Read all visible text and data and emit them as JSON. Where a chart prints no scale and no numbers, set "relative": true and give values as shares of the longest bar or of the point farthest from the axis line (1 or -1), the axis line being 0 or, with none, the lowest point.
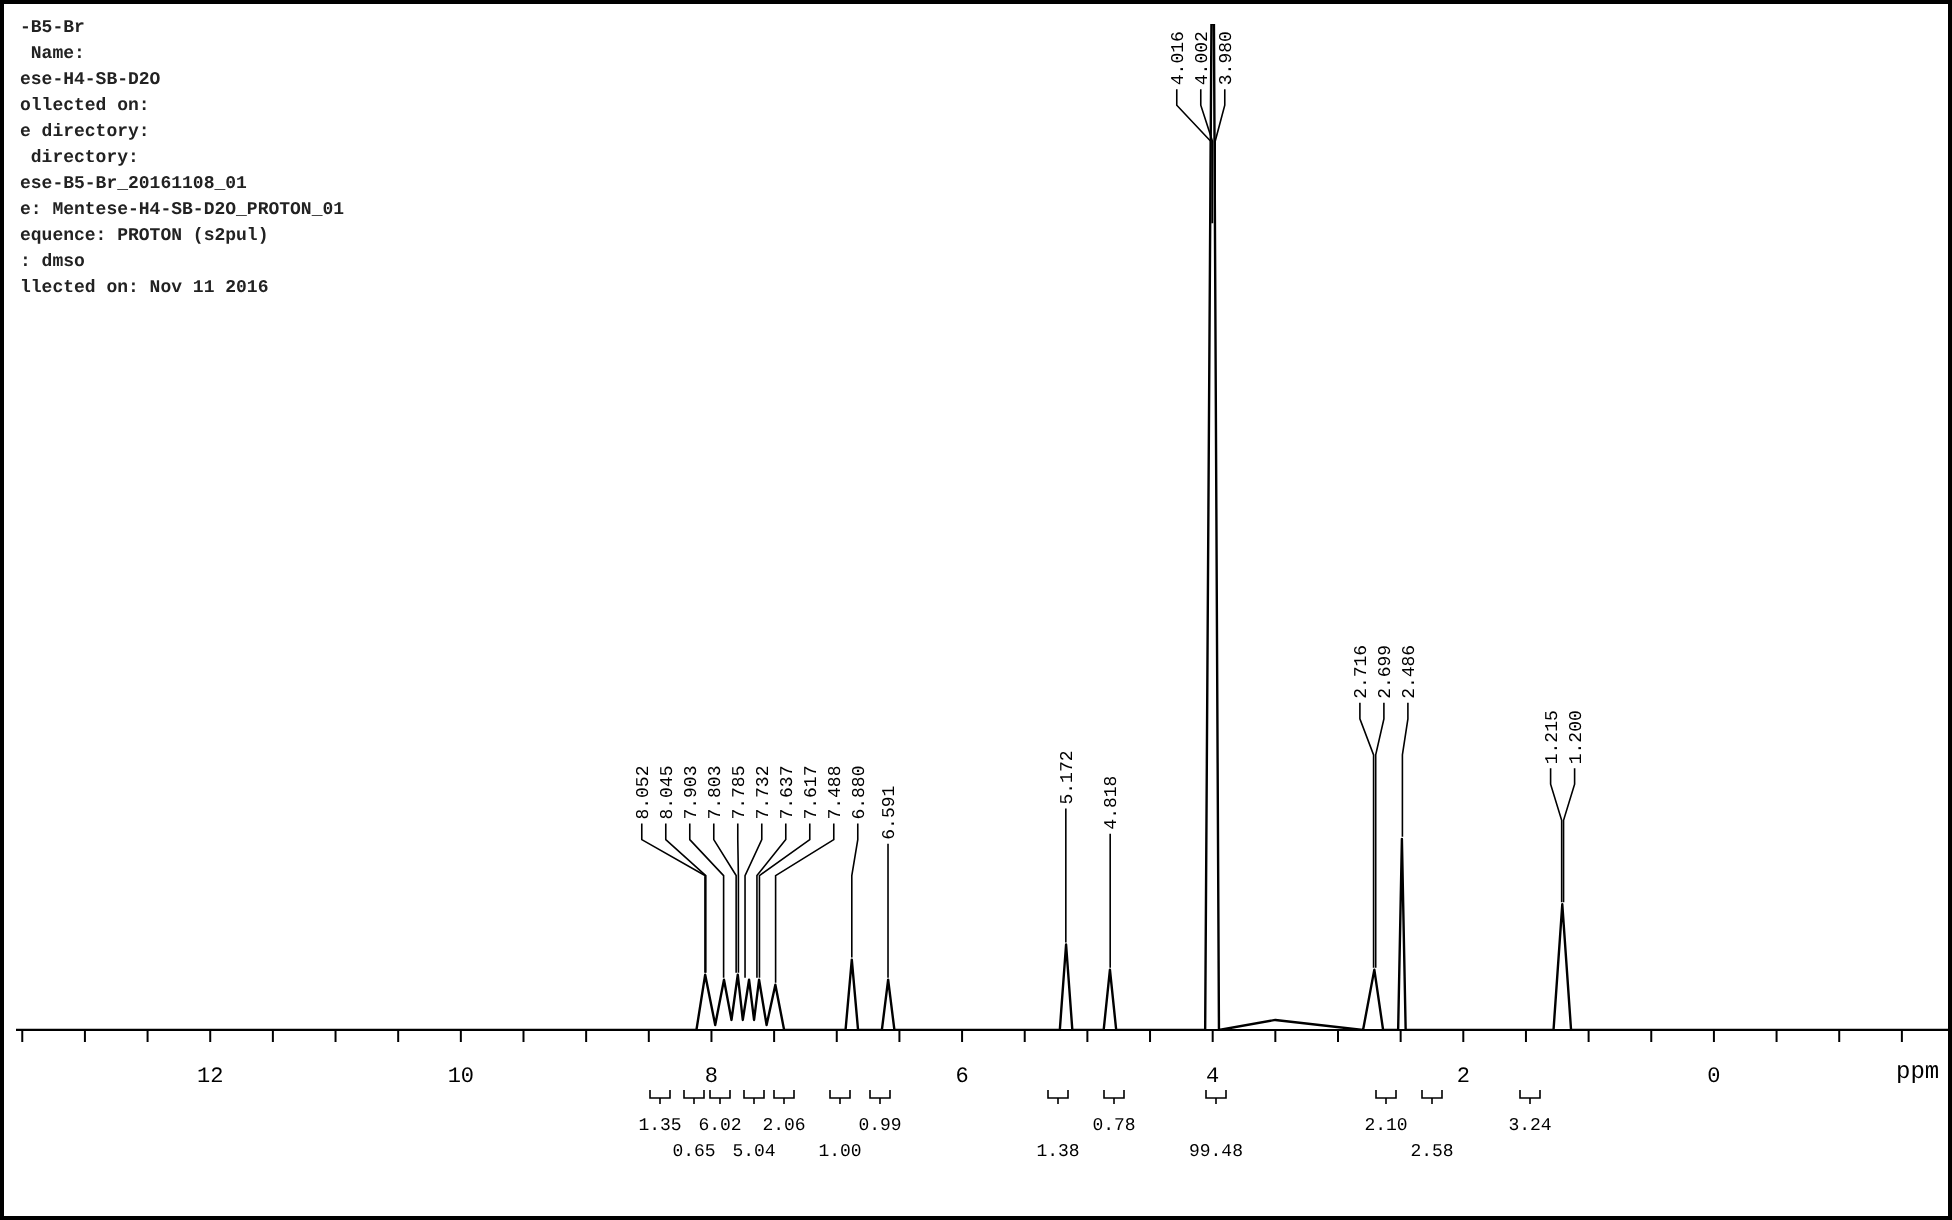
{
  "chart_data": {
    "type": "line",
    "relative": true,
    "xlabel": "ppm",
    "xlim": [
      13.55,
      -1.9
    ],
    "xticks": [
      {
        "value": 13.5,
        "label": null
      },
      {
        "value": 13,
        "label": null
      },
      {
        "value": 12.5,
        "label": null
      },
      12,
      {
        "value": 11.5,
        "label": null
      },
      {
        "value": 11,
        "label": null
      },
      {
        "value": 10.5,
        "label": null
      },
      10,
      {
        "value": 9.5,
        "label": null
      },
      {
        "value": 9,
        "label": null
      },
      {
        "value": 8.5,
        "label": null
      },
      8,
      {
        "value": 7.5,
        "label": null
      },
      {
        "value": 7,
        "label": null
      },
      {
        "value": 6.5,
        "label": null
      },
      6,
      {
        "value": 5.5,
        "label": null
      },
      {
        "value": 5,
        "label": null
      },
      {
        "value": 4.5,
        "label": null
      },
      4,
      {
        "value": 3.5,
        "label": null
      },
      {
        "value": 3,
        "label": null
      },
      {
        "value": 2.5,
        "label": null
      },
      2,
      {
        "value": 1.5,
        "label": null
      },
      {
        "value": 1,
        "label": null
      },
      {
        "value": 0.5,
        "label": null
      },
      0,
      {
        "value": -0.5,
        "label": null
      },
      {
        "value": -1,
        "label": null
      },
      {
        "value": -1.5,
        "label": null
      }
    ],
    "marker": "none",
    "line_style": "solid",
    "series": [
      {
        "color": "#000000",
        "x": [
          13.55,
          8.12,
          8.05,
          7.97,
          7.9,
          7.84,
          7.79,
          7.75,
          7.7,
          7.66,
          7.62,
          7.56,
          7.49,
          7.42,
          6.93,
          6.88,
          6.83,
          6.64,
          6.59,
          6.54,
          5.22,
          5.17,
          5.12,
          4.87,
          4.82,
          4.77,
          4.06,
          4.01,
          3.99,
          3.95,
          3.5,
          2.8,
          2.71,
          2.64,
          2.52,
          2.49,
          2.46,
          1.28,
          1.21,
          1.14,
          -1.9
        ],
        "values": [
          0,
          0,
          0.055,
          0.005,
          0.05,
          0.01,
          0.055,
          0.01,
          0.05,
          0.01,
          0.05,
          0.005,
          0.045,
          0,
          0,
          0.07,
          0,
          0,
          0.05,
          0,
          0,
          0.085,
          0,
          0,
          0.06,
          0,
          0,
          1,
          1,
          0,
          0.01,
          0,
          0.06,
          0,
          0,
          0.19,
          0,
          0,
          0.125,
          0,
          0
        ]
      }
    ],
    "annotations": [
      "-B5-Br",
      " Name:",
      "ese-H4-SB-D2O",
      "ollected on:",
      "e directory:",
      " directory:",
      "ese-B5-Br_20161108_01",
      "e: Mentese-H4-SB-D2O_PROTON_01",
      "equence: PROTON (s2pul)",
      ": dmso",
      "llected on: Nov 11 2016",
      {
        "text": "8.052",
        "x": 8.052,
        "y": 0.055
      },
      {
        "text": "8.045",
        "x": 8.045,
        "y": 0.055
      },
      {
        "text": "7.903",
        "x": 7.903,
        "y": 0.05
      },
      {
        "text": "7.803",
        "x": 7.803,
        "y": 0.055
      },
      {
        "text": "7.785",
        "x": 7.785,
        "y": 0.055
      },
      {
        "text": "7.732",
        "x": 7.732,
        "y": 0.05
      },
      {
        "text": "7.637",
        "x": 7.637,
        "y": 0.05
      },
      {
        "text": "7.617",
        "x": 7.617,
        "y": 0.05
      },
      {
        "text": "7.488",
        "x": 7.488,
        "y": 0.045
      },
      {
        "text": "6.880",
        "x": 6.88,
        "y": 0.07
      },
      {
        "text": "6.591",
        "x": 6.591,
        "y": 0.05
      },
      {
        "text": "5.172",
        "x": 5.172,
        "y": 0.085
      },
      {
        "text": "4.818",
        "x": 4.818,
        "y": 0.06
      },
      {
        "text": "4.016",
        "x": 4.016,
        "y": 0.8
      },
      {
        "text": "4.002",
        "x": 4.002,
        "y": 0.8
      },
      {
        "text": "3.980",
        "x": 3.98,
        "y": 0.8
      },
      {
        "text": "2.716",
        "x": 2.716,
        "y": 0.06
      },
      {
        "text": "2.699",
        "x": 2.699,
        "y": 0.06
      },
      {
        "text": "2.486",
        "x": 2.486,
        "y": 0.19
      },
      {
        "text": "1.215",
        "x": 1.215,
        "y": 0.125
      },
      {
        "text": "1.200",
        "x": 1.2,
        "y": 0.125
      },
      "1.35",
      "0.65",
      "6.02",
      "5.04",
      "2.06",
      "1.00",
      "0.99",
      "1.38",
      "0.78",
      "99.48",
      "2.10",
      "2.58",
      "3.24"
    ]
  }
}
